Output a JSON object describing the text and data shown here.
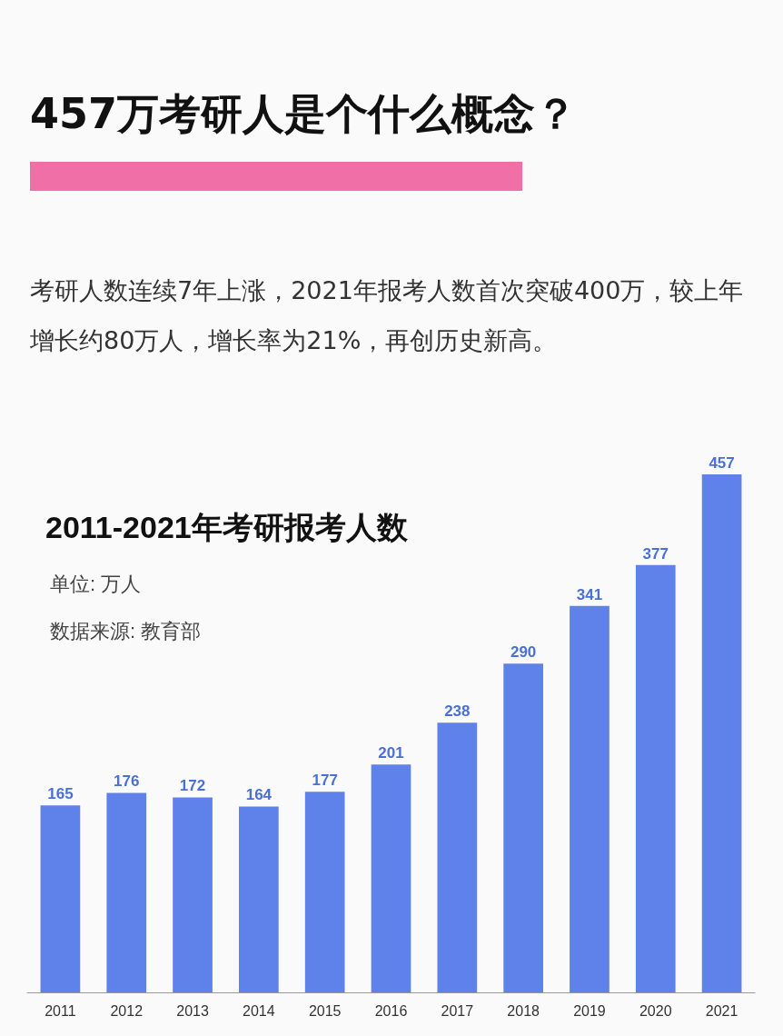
{
  "chart_data": {
    "type": "bar",
    "title": "457万考研人是个什么概念？",
    "subtitle": "考研人数连续7年上涨，2021年报考人数首次突破400万，较上年增长约80万人，增长率为21%，再创历史新高。",
    "annotations": [
      "2011-2021年考研报考人数",
      "单位: 万人",
      "数据来源: 教育部"
    ],
    "categories": [
      "2011",
      "2012",
      "2013",
      "2014",
      "2015",
      "2016",
      "2017",
      "2018",
      "2019",
      "2020",
      "2021"
    ],
    "values": [
      165,
      176,
      172,
      164,
      177,
      201,
      238,
      290,
      341,
      377,
      457
    ],
    "color": "#5f82ea",
    "data_labels": true
  }
}
